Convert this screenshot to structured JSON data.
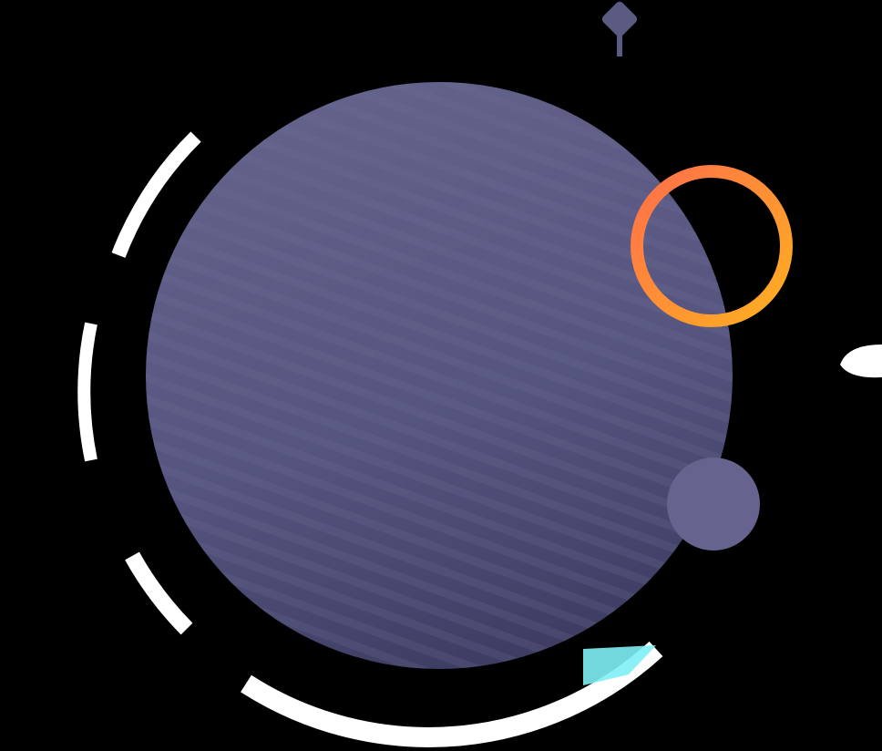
{
  "illustration": {
    "background_color": "#000000",
    "main_circle": {
      "color_top": "#62628a",
      "color_mid": "#555580",
      "color_bottom": "#3c3c62",
      "stripe_color": "#6c6c94"
    },
    "decorative_arc_color": "#ffffff",
    "ring": {
      "color_start": "#ff6f4a",
      "color_end": "#ffb020"
    },
    "small_circle_color": "#66648e",
    "diamond_color": "#5a5a82",
    "dot_color": "#ffffff",
    "accent_sliver_color": "#7ff0f5"
  }
}
